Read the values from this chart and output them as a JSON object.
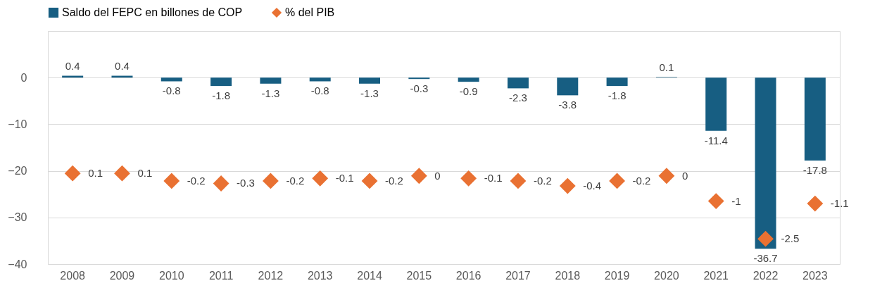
{
  "chart_data": {
    "type": "bar",
    "categories": [
      "2008",
      "2009",
      "2010",
      "2011",
      "2012",
      "2013",
      "2014",
      "2015",
      "2016",
      "2017",
      "2018",
      "2019",
      "2020",
      "2021",
      "2022",
      "2023"
    ],
    "series": [
      {
        "name": "Saldo del FEPC en billones de COP",
        "color": "#175e82",
        "values": [
          0.4,
          0.4,
          -0.8,
          -1.8,
          -1.3,
          -0.8,
          -1.3,
          -0.3,
          -0.9,
          -2.3,
          -3.8,
          -1.8,
          0.1,
          -11.4,
          -36.7,
          -17.8
        ]
      },
      {
        "name": "% del PIB",
        "type": "scatter",
        "axis": "y2",
        "color": "#e97132",
        "values": [
          0.1,
          0.1,
          -0.2,
          -0.3,
          -0.2,
          -0.1,
          -0.2,
          0,
          -0.1,
          -0.2,
          -0.4,
          -0.2,
          0,
          -1,
          -2.5,
          -1.1
        ]
      }
    ],
    "ylim": [
      -40,
      10
    ],
    "yticks": [
      -40,
      -30,
      -20,
      -10,
      0
    ],
    "y2lim": [
      -3.5,
      5.75
    ],
    "marker": "diamond",
    "grid": "y",
    "legend": "top",
    "data_labels": true,
    "tick_labels": "xy"
  }
}
